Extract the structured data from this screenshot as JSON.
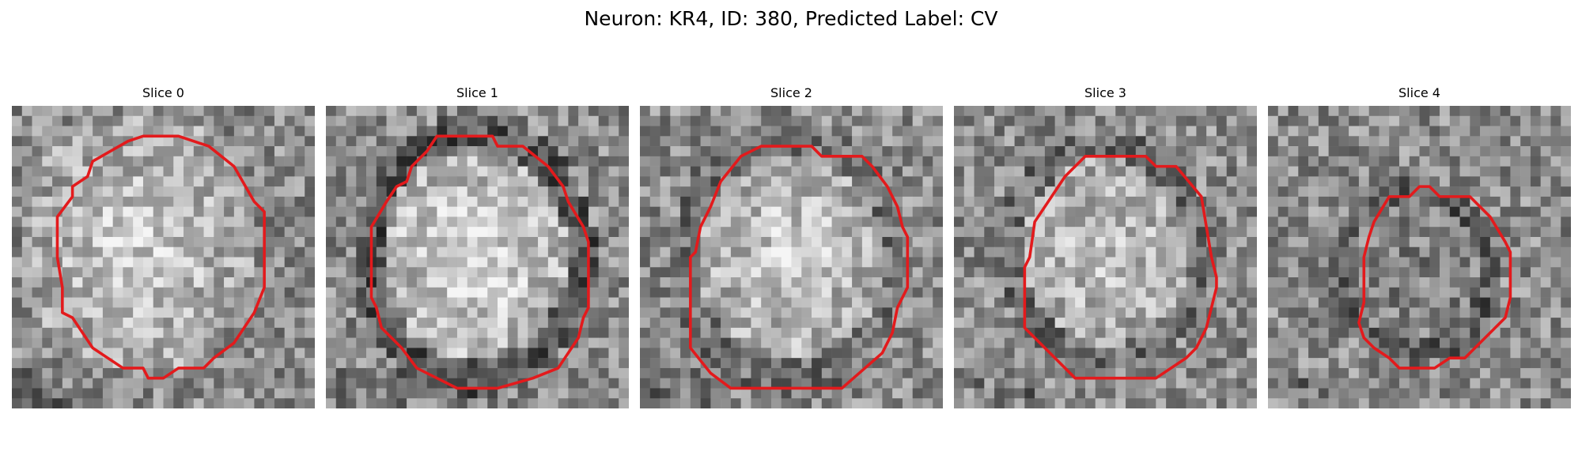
{
  "figure": {
    "title": "Neuron: KR4, ID: 380, Predicted Label: CV",
    "contour_color": "#e31a1c",
    "panels": [
      {
        "title": "Slice 0",
        "contour_icon": "red-contour-outline"
      },
      {
        "title": "Slice 1",
        "contour_icon": "red-contour-outline"
      },
      {
        "title": "Slice 2",
        "contour_icon": "red-contour-outline"
      },
      {
        "title": "Slice 3",
        "contour_icon": "red-contour-outline"
      },
      {
        "title": "Slice 4",
        "contour_icon": "red-contour-outline"
      }
    ]
  }
}
